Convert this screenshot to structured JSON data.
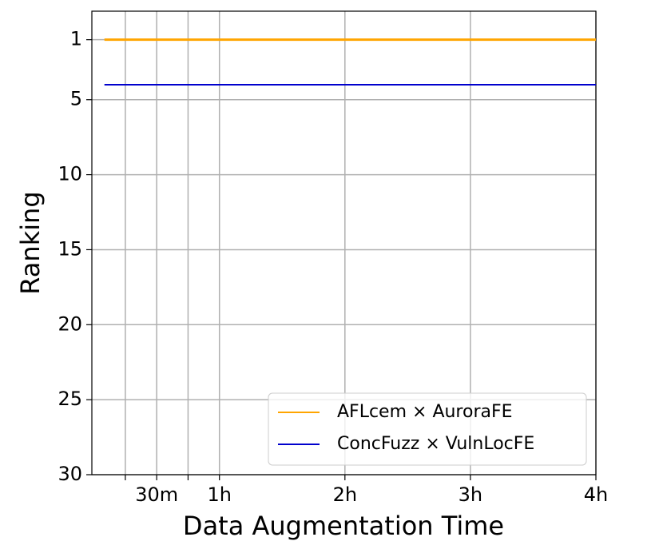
{
  "chart_data": {
    "type": "line",
    "xlabel": "Data Augmentation Time",
    "ylabel": "Ranking",
    "x": [
      5,
      240
    ],
    "series": [
      {
        "name": "AFLcem × AuroraFE",
        "color": "#ffa500",
        "values": [
          1,
          1
        ]
      },
      {
        "name": "ConcFuzz × VulnLocFE",
        "color": "#0000cd",
        "values": [
          4,
          4
        ]
      }
    ],
    "xlim": [
      -1,
      240
    ],
    "xticks": [
      {
        "value": 15,
        "label": null
      },
      {
        "value": 30,
        "label": "30m"
      },
      {
        "value": 45,
        "label": null
      },
      {
        "value": 60,
        "label": "1h"
      },
      {
        "value": 120,
        "label": "2h"
      },
      {
        "value": 180,
        "label": "3h"
      },
      {
        "value": 240,
        "label": "4h"
      }
    ],
    "ylim": [
      30,
      -0.9
    ],
    "yticks": [
      1,
      5,
      10,
      15,
      20,
      25,
      30
    ],
    "grid": true,
    "legend": "lower right"
  }
}
